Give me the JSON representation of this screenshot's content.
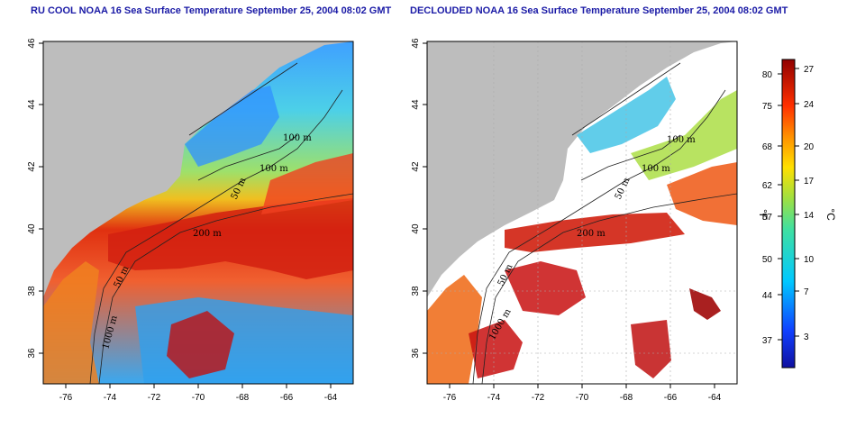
{
  "left_map": {
    "title": "RU COOL NOAA 16 Sea Surface Temperature September 25, 2004 08:02 GMT",
    "contour_labels": [
      "100 m",
      "100 m",
      "50 m",
      "200 m",
      "50 m",
      "1000 m"
    ]
  },
  "right_map": {
    "title": "DECLOUDED NOAA 16 Sea Surface Temperature September 25, 2004 08:02 GMT",
    "contour_labels": [
      "100 m",
      "100 m",
      "50 m",
      "200 m",
      "50 m",
      "1000 m"
    ]
  },
  "axes": {
    "lon_ticks": [
      "-76",
      "-74",
      "-72",
      "-70",
      "-68",
      "-66",
      "-64"
    ],
    "lat_ticks": [
      "46",
      "44",
      "42",
      "40",
      "38",
      "36"
    ]
  },
  "colorbar": {
    "fahrenheit_label": "°F",
    "celsius_label": "°C",
    "fahrenheit_ticks": [
      "80",
      "75",
      "68",
      "62",
      "57",
      "50",
      "44",
      "37"
    ],
    "celsius_ticks": [
      "27",
      "24",
      "20",
      "17",
      "14",
      "10",
      "7",
      "3"
    ],
    "colors": {
      "land": "#bdbdbd",
      "cloud": "#ffffff",
      "cold": "#1010c0",
      "hot": "#8b0000"
    }
  }
}
